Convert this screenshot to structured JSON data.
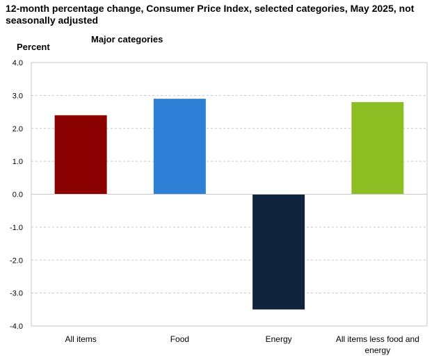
{
  "title": "12-month percentage change, Consumer Price Index, selected categories, May 2025, not seasonally adjusted",
  "chart_data": {
    "type": "bar",
    "title": "12-month percentage change, Consumer Price Index, selected categories, May 2025, not seasonally adjusted",
    "subtitle": "Major categories",
    "ylabel": "Percent",
    "xlabel": "",
    "ylim": [
      -4.0,
      4.0
    ],
    "yticks": [
      4.0,
      3.0,
      2.0,
      1.0,
      0.0,
      -1.0,
      -2.0,
      -3.0,
      -4.0
    ],
    "ytick_labels": [
      "4.0",
      "3.0",
      "2.0",
      "1.0",
      "0.0",
      "-1.0",
      "-2.0",
      "-3.0",
      "-4.0"
    ],
    "categories": [
      [
        "All items"
      ],
      [
        "Food"
      ],
      [
        "Energy"
      ],
      [
        "All items less food and",
        "energy"
      ]
    ],
    "values": [
      2.4,
      2.9,
      -3.5,
      2.8
    ],
    "colors": [
      "#8b0000",
      "#2e7fd6",
      "#0f233d",
      "#8dbe24"
    ],
    "grid": "horizontal dashed",
    "legend": "none"
  }
}
